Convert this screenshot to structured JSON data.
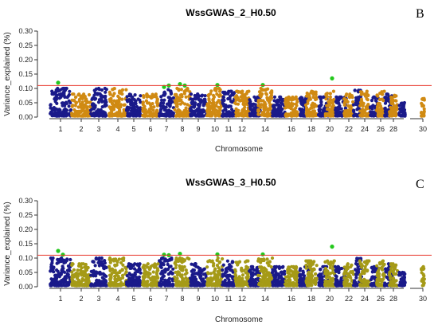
{
  "colors": {
    "odd_chromosome": "#1a1a8a",
    "even_chromosome_B": "#d08a12",
    "even_chromosome_C": "#a59a17",
    "significant": "#23c81c",
    "threshold_line": "#e8382e",
    "axis": "#333333"
  },
  "chart_data": [
    {
      "type": "scatter",
      "panel_letter": "B",
      "title": "WssGWAS_2_H0.50",
      "xlabel": "Chromosome",
      "ylabel": "Variance_explained (%)",
      "ylim": [
        0,
        0.3
      ],
      "yticks": [
        "0.00",
        "0.05",
        "0.10",
        "0.15",
        "0.20",
        "0.25",
        "0.30"
      ],
      "xtick_labels": [
        "1",
        "2",
        "3",
        "4",
        "5",
        "6",
        "7",
        "8",
        "9",
        "10",
        "11",
        "12",
        "14",
        "16",
        "18",
        "20",
        "22",
        "24",
        "26",
        "28",
        "30"
      ],
      "threshold": 0.11,
      "chromosomes": [
        1,
        2,
        3,
        4,
        5,
        6,
        7,
        8,
        9,
        10,
        11,
        12,
        13,
        14,
        15,
        16,
        17,
        18,
        19,
        20,
        21,
        22,
        23,
        24,
        25,
        26,
        27,
        28,
        29,
        30
      ],
      "chromosome_peaks": [
        0.1,
        0.08,
        0.1,
        0.1,
        0.08,
        0.08,
        0.1,
        0.1,
        0.08,
        0.1,
        0.09,
        0.09,
        0.07,
        0.1,
        0.07,
        0.07,
        0.07,
        0.09,
        0.07,
        0.09,
        0.07,
        0.08,
        0.1,
        0.09,
        0.07,
        0.09,
        0.08,
        0.08,
        0.05,
        0.07
      ],
      "significant_points": [
        {
          "chromosome": 1,
          "value": 0.12
        },
        {
          "chromosome": 7,
          "value": 0.11
        },
        {
          "chromosome": 7,
          "value": 0.105
        },
        {
          "chromosome": 8,
          "value": 0.11
        },
        {
          "chromosome": 8,
          "value": 0.115
        },
        {
          "chromosome": 10,
          "value": 0.112
        },
        {
          "chromosome": 14,
          "value": 0.112
        },
        {
          "chromosome": 20,
          "value": 0.135
        }
      ],
      "grid": false
    },
    {
      "type": "scatter",
      "panel_letter": "C",
      "title": "WssGWAS_3_H0.50",
      "xlabel": "Chromosome",
      "ylabel": "Variance_explained (%)",
      "ylim": [
        0,
        0.3
      ],
      "yticks": [
        "0.00",
        "0.05",
        "0.10",
        "0.15",
        "0.20",
        "0.25",
        "0.30"
      ],
      "xtick_labels": [
        "1",
        "2",
        "3",
        "4",
        "5",
        "6",
        "7",
        "8",
        "9",
        "10",
        "11",
        "12",
        "14",
        "16",
        "18",
        "20",
        "22",
        "24",
        "26",
        "28",
        "30"
      ],
      "threshold": 0.11,
      "chromosomes": [
        1,
        2,
        3,
        4,
        5,
        6,
        7,
        8,
        9,
        10,
        11,
        12,
        13,
        14,
        15,
        16,
        17,
        18,
        19,
        20,
        21,
        22,
        23,
        24,
        25,
        26,
        27,
        28,
        29,
        30
      ],
      "chromosome_peaks": [
        0.1,
        0.08,
        0.1,
        0.1,
        0.08,
        0.08,
        0.1,
        0.1,
        0.08,
        0.1,
        0.09,
        0.09,
        0.07,
        0.1,
        0.07,
        0.07,
        0.07,
        0.09,
        0.07,
        0.09,
        0.07,
        0.08,
        0.1,
        0.09,
        0.07,
        0.09,
        0.08,
        0.08,
        0.05,
        0.07
      ],
      "significant_points": [
        {
          "chromosome": 1,
          "value": 0.125
        },
        {
          "chromosome": 1,
          "value": 0.112
        },
        {
          "chromosome": 7,
          "value": 0.112
        },
        {
          "chromosome": 7,
          "value": 0.11
        },
        {
          "chromosome": 8,
          "value": 0.115
        },
        {
          "chromosome": 10,
          "value": 0.113
        },
        {
          "chromosome": 14,
          "value": 0.113
        },
        {
          "chromosome": 20,
          "value": 0.14
        }
      ],
      "grid": false
    }
  ]
}
